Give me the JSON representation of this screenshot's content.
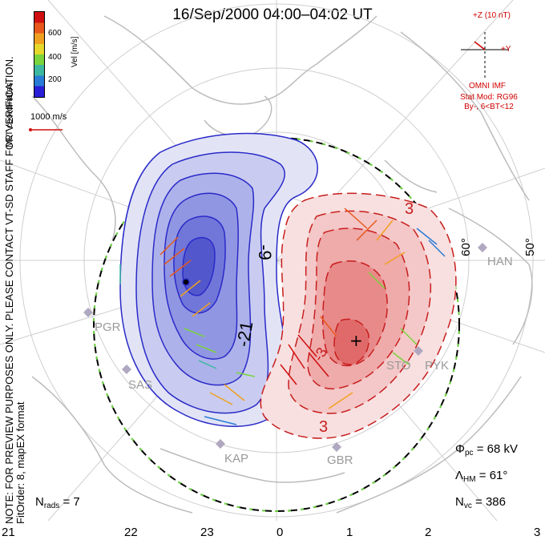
{
  "title": "16/Sep/2000 04:00–04:02 UT",
  "side_note": {
    "line1": "MLT coordinates",
    "line2": "NOTE: FOR PREVIEW PURPOSES ONLY. PLEASE CONTACT VT-SD STAFF FOR VERIFICATION.",
    "line3": "FitOrder: 8, mapEX format"
  },
  "velocity_legend": {
    "label": "Vel [m/s]",
    "ticks": [
      "600",
      "400",
      "200"
    ],
    "colors": [
      "#2a1fd6",
      "#2a7bd6",
      "#3cb8a0",
      "#7ad43c",
      "#e6d82a",
      "#f0a020",
      "#e8581c",
      "#d01010"
    ],
    "scale_label": "1000 m/s"
  },
  "imf": {
    "z_label": "+Z (10 nT)",
    "y_label": "+Y",
    "source": "OMNI IMF",
    "model": "Stat Mod: RG96",
    "condition": "By-, 6<BT<12"
  },
  "stats": {
    "phi_pc": "Φ",
    "phi_sub": "pc",
    "phi_value": " = 68 kV",
    "lambda_hm": "Λ",
    "lambda_sub": "HM",
    "lambda_value": " = 61°",
    "n_vc": "N",
    "n_vc_sub": "vc",
    "n_vc_value": " = 386",
    "n_rads": "N",
    "n_rads_sub": "rads",
    "n_rads_value": " = 7"
  },
  "mlt_labels": [
    "21",
    "22",
    "23",
    "0",
    "1",
    "2",
    "3"
  ],
  "latitude_labels": [
    "60°",
    "50°"
  ],
  "contour_labels": [
    "-9",
    "-21",
    "3",
    "3",
    "-3"
  ],
  "stations": [
    "PGR",
    "SAS",
    "KAP",
    "GBR",
    "STO",
    "PYK",
    "HAN"
  ],
  "colors": {
    "negative_cell": "#3a3ad0",
    "positive_cell": "#d83030",
    "boundary": "#000000",
    "land": "#c8c8c8",
    "grid": "#c8c8c8",
    "imf": "#d00000"
  }
}
